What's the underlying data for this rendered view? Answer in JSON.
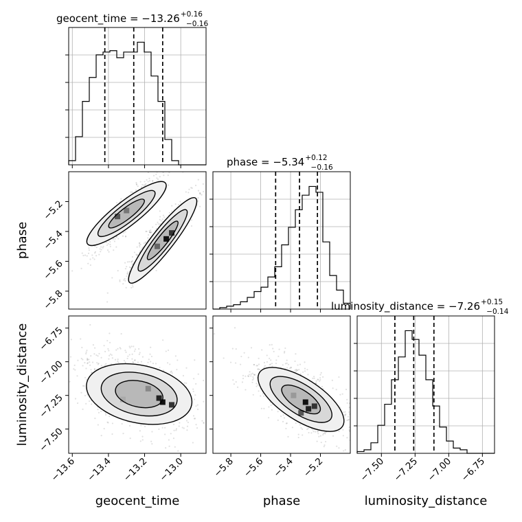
{
  "chart_data": {
    "type": "corner",
    "parameters": [
      {
        "name": "geocent_time",
        "title_base": "geocent_time = −13.26",
        "title_plus": "+0.16",
        "title_minus": "−0.16",
        "median": -13.26,
        "quantiles": [
          -13.42,
          -13.26,
          -13.1
        ],
        "range": [
          -13.62,
          -12.86
        ],
        "ticks": [
          -13.6,
          -13.4,
          -13.2,
          -13.0
        ],
        "tick_labels": [
          "−13.6",
          "−13.4",
          "−13.2",
          "−13.0"
        ],
        "hist_edges_start": -13.62,
        "hist_bin_width": 0.038,
        "hist": [
          3,
          20,
          45,
          62,
          78,
          80,
          81,
          76,
          80,
          80,
          87,
          80,
          63,
          45,
          18,
          3,
          0,
          0,
          0,
          0
        ]
      },
      {
        "name": "phase",
        "title_base": "phase = −5.34",
        "title_plus": "+0.12",
        "title_minus": "−0.16",
        "median": -5.34,
        "quantiles": [
          -5.5,
          -5.34,
          -5.22
        ],
        "range": [
          -5.92,
          -5.0
        ],
        "ticks": [
          -5.8,
          -5.6,
          -5.4,
          -5.2
        ],
        "tick_labels": [
          "−5.8",
          "−5.6",
          "−5.4",
          "−5.2"
        ],
        "hist_edges_start": -5.92,
        "hist_bin_width": 0.046,
        "hist": [
          0,
          1,
          2,
          3,
          5,
          8,
          12,
          15,
          22,
          29,
          44,
          56,
          68,
          78,
          84,
          80,
          46,
          23,
          13,
          4
        ]
      },
      {
        "name": "luminosity_distance",
        "title_base": "luminosity_distance = −7.26",
        "title_plus": "+0.15",
        "title_minus": "−0.14",
        "median": -7.26,
        "quantiles": [
          -7.4,
          -7.26,
          -7.11
        ],
        "range": [
          -7.68,
          -6.66
        ],
        "ticks": [
          -7.5,
          -7.25,
          -7.0,
          -6.75
        ],
        "tick_labels": [
          "−7.50",
          "−7.25",
          "−7.00",
          "−6.75"
        ],
        "hist_edges_start": -7.68,
        "hist_bin_width": 0.051,
        "hist": [
          1,
          2,
          6,
          16,
          28,
          42,
          55,
          70,
          65,
          56,
          42,
          27,
          15,
          7,
          3,
          2,
          0,
          0,
          0,
          0
        ]
      }
    ],
    "pairs": [
      {
        "x": "geocent_time",
        "y": "phase",
        "correlation": "positive, bimodal (two parallel ridges)"
      },
      {
        "x": "geocent_time",
        "y": "luminosity_distance",
        "correlation": "weak negative"
      },
      {
        "x": "phase",
        "y": "luminosity_distance",
        "correlation": "negative"
      }
    ],
    "grid": true,
    "quantile_lines": "dashed"
  }
}
